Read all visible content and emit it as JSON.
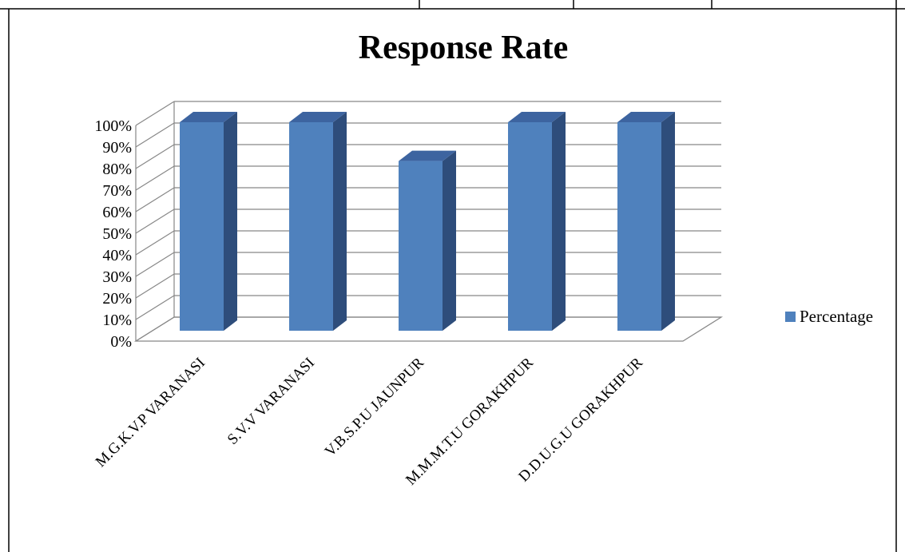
{
  "colors": {
    "bar_front": "#4F81BD",
    "bar_side": "#2E4D7B",
    "bar_top": "#3D64A0",
    "grid": "#878787"
  },
  "chart_data": {
    "type": "bar",
    "title": "Response Rate",
    "categories": [
      "M.G.K.V.P VARANASI",
      "S.V.V VARANASI",
      "V.B.S.P.U JAUNPUR",
      "M.M.M.T.U GORAKHPUR",
      "D.D.U.G.U GORAKHPUR"
    ],
    "series": [
      {
        "name": "Percentage",
        "values": [
          100,
          100,
          82,
          100,
          100
        ]
      }
    ],
    "yticks": [
      "0%",
      "10%",
      "20%",
      "30%",
      "40%",
      "50%",
      "60%",
      "70%",
      "80%",
      "90%",
      "100%"
    ],
    "ylim": [
      0,
      100
    ],
    "grid": true,
    "legend": "right",
    "style": "3d-column"
  }
}
